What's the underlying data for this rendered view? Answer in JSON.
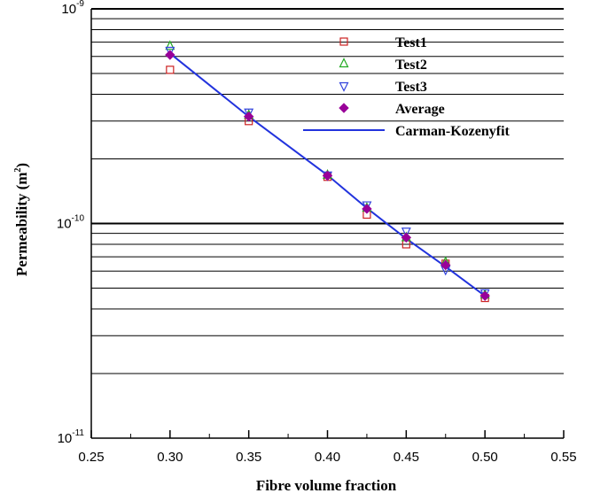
{
  "chart_data": {
    "type": "scatter",
    "xlabel": "Fibre volume fraction",
    "ylabel_main": "Permeability (m",
    "ylabel_sup": "2",
    "ylabel_close": ")",
    "xlim": [
      0.25,
      0.55
    ],
    "ylim": [
      1e-11,
      1e-09
    ],
    "yscale": "log",
    "grid": "horizontal",
    "legend_position": "top-right",
    "x_tick_labels": [
      "0.25",
      "0.30",
      "0.35",
      "0.40",
      "0.45",
      "0.50",
      "0.55"
    ],
    "y_tick_labels": [
      {
        "base": "10",
        "exp": "-11"
      },
      {
        "base": "10",
        "exp": "-10"
      },
      {
        "base": "10",
        "exp": "-9"
      }
    ],
    "series": [
      {
        "name": "Test1",
        "marker": "square",
        "color": "#cc2222",
        "x": [
          0.3,
          0.35,
          0.4,
          0.425,
          0.45,
          0.475,
          0.5
        ],
        "y": [
          5.2e-10,
          3e-10,
          1.65e-10,
          1.1e-10,
          8e-11,
          6.5e-11,
          4.5e-11
        ]
      },
      {
        "name": "Test2",
        "marker": "triangle-up",
        "color": "#22aa22",
        "x": [
          0.3,
          0.35,
          0.4,
          0.425,
          0.45,
          0.475,
          0.5
        ],
        "y": [
          6.7e-10,
          3.2e-10,
          1.68e-10,
          1.18e-10,
          8.6e-11,
          6.6e-11,
          4.65e-11
        ]
      },
      {
        "name": "Test3",
        "marker": "triangle-down",
        "color": "#3344dd",
        "x": [
          0.3,
          0.35,
          0.4,
          0.425,
          0.45,
          0.475,
          0.5
        ],
        "y": [
          6.4e-10,
          3.3e-10,
          1.68e-10,
          1.22e-10,
          9.2e-11,
          6.1e-11,
          4.75e-11
        ]
      },
      {
        "name": "Average",
        "marker": "diamond",
        "color": "#990099",
        "x": [
          0.3,
          0.35,
          0.4,
          0.425,
          0.45,
          0.475,
          0.5
        ],
        "y": [
          6.1e-10,
          3.15e-10,
          1.67e-10,
          1.17e-10,
          8.6e-11,
          6.4e-11,
          4.6e-11
        ]
      },
      {
        "name": "Carman-Kozenyfit",
        "marker": "line",
        "color": "#2233dd",
        "x": [
          0.3,
          0.35,
          0.4,
          0.425,
          0.45,
          0.475,
          0.5
        ],
        "y": [
          6.2e-10,
          3.15e-10,
          1.68e-10,
          1.18e-10,
          8.5e-11,
          6.3e-11,
          4.6e-11
        ]
      }
    ]
  }
}
